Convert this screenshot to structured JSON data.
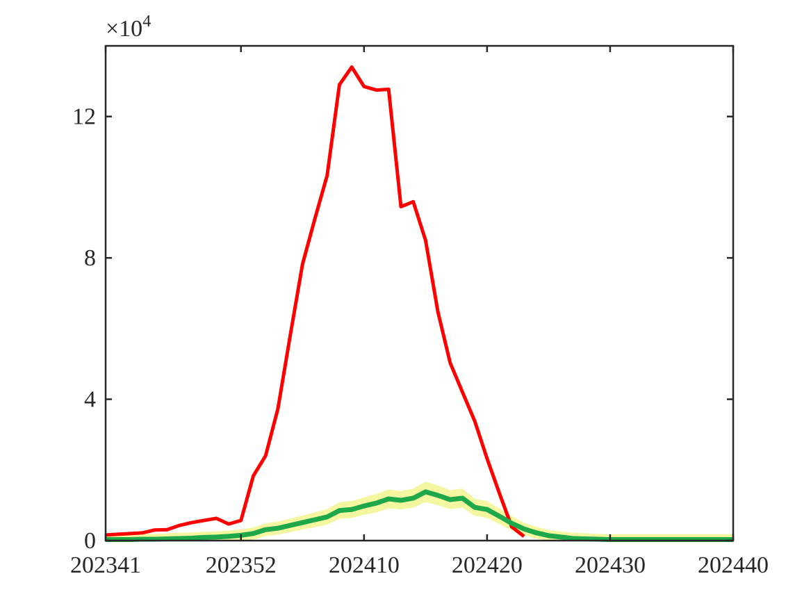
{
  "chart_data": {
    "type": "line",
    "y_multiplier": {
      "base": "×10",
      "power": "4"
    },
    "categories": [
      "202341",
      null,
      null,
      null,
      null,
      null,
      null,
      null,
      null,
      null,
      null,
      "202352",
      null,
      null,
      null,
      null,
      null,
      null,
      null,
      null,
      null,
      "202410",
      null,
      null,
      null,
      null,
      null,
      null,
      null,
      null,
      null,
      "202420",
      null,
      null,
      null,
      null,
      null,
      null,
      null,
      null,
      null,
      "202430",
      null,
      null,
      null,
      null,
      null,
      null,
      null,
      null,
      null,
      "202440"
    ],
    "ylim": [
      0,
      14
    ],
    "yticks": [
      0,
      4,
      8,
      12
    ],
    "band": {
      "color": "#f5f7a0",
      "upper": [
        0.18,
        0.18,
        0.18,
        0.19,
        0.19,
        0.21,
        0.22,
        0.23,
        0.25,
        0.26,
        0.28,
        0.32,
        0.37,
        0.49,
        0.54,
        0.62,
        0.71,
        0.8,
        0.89,
        1.09,
        1.12,
        1.23,
        1.32,
        1.45,
        1.4,
        1.47,
        1.67,
        1.56,
        1.43,
        1.47,
        1.18,
        1.12,
        0.91,
        0.69,
        0.51,
        0.39,
        0.3,
        0.26,
        0.22,
        0.21,
        0.19,
        0.18,
        0.18,
        0.18,
        0.18,
        0.18,
        0.18,
        0.18,
        0.18,
        0.18,
        0.18,
        0.18
      ],
      "lower": [
        0,
        0,
        0,
        0,
        0,
        0,
        0,
        0,
        0,
        0,
        0,
        0,
        0.03,
        0.13,
        0.17,
        0.24,
        0.31,
        0.38,
        0.45,
        0.62,
        0.64,
        0.73,
        0.8,
        0.91,
        0.88,
        0.93,
        1.09,
        1.0,
        0.89,
        0.93,
        0.7,
        0.64,
        0.47,
        0.29,
        0.15,
        0.05,
        0,
        0,
        0,
        0,
        0,
        0,
        0,
        0,
        0,
        0,
        0,
        0,
        0,
        0,
        0,
        0
      ]
    },
    "series": [
      {
        "color": "#ff0000",
        "width": 5,
        "values": [
          0.16,
          0.18,
          0.2,
          0.22,
          0.3,
          0.31,
          0.43,
          0.51,
          0.57,
          0.63,
          0.47,
          0.57,
          1.83,
          2.4,
          3.73,
          5.8,
          7.82,
          9.1,
          10.33,
          12.9,
          13.4,
          12.85,
          12.75,
          12.77,
          9.45,
          9.59,
          8.5,
          6.48,
          5.03,
          4.2,
          3.38,
          2.32,
          1.34,
          0.39,
          0.12,
          null,
          null,
          null,
          null,
          null,
          null,
          null,
          null,
          null,
          null,
          null,
          null,
          null,
          null,
          null,
          null,
          null
        ]
      },
      {
        "color": "#1fa84a",
        "width": 7,
        "values": [
          0.03,
          0.03,
          0.03,
          0.04,
          0.04,
          0.05,
          0.06,
          0.07,
          0.09,
          0.1,
          0.12,
          0.15,
          0.2,
          0.31,
          0.35,
          0.43,
          0.51,
          0.59,
          0.67,
          0.85,
          0.88,
          0.98,
          1.06,
          1.18,
          1.14,
          1.2,
          1.38,
          1.28,
          1.16,
          1.2,
          0.94,
          0.88,
          0.69,
          0.49,
          0.33,
          0.22,
          0.14,
          0.1,
          0.06,
          0.05,
          0.04,
          0.03,
          0.03,
          0.03,
          0.03,
          0.03,
          0.03,
          0.03,
          0.03,
          0.03,
          0.03,
          0.03
        ]
      }
    ]
  }
}
